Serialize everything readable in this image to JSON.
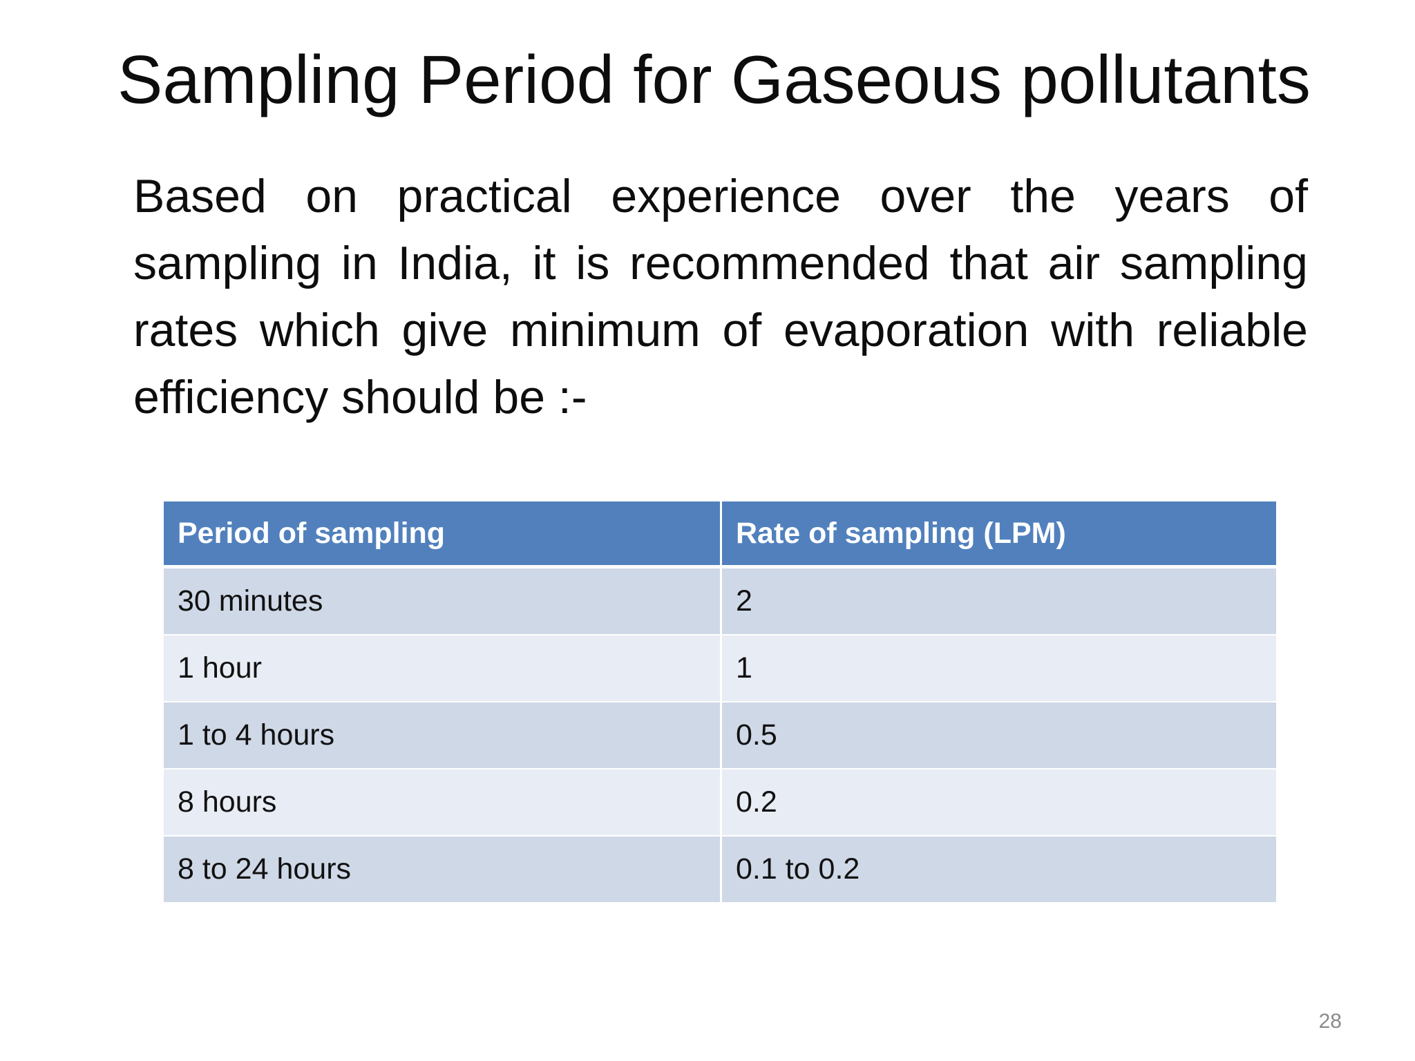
{
  "slide": {
    "title": "Sampling Period for Gaseous pollutants",
    "body": "Based on practical experience over the years of sampling in India, it is recommended that air sampling rates which give minimum of evaporation with reliable efficiency should be :-",
    "page_number": "28"
  },
  "table": {
    "headers": [
      "Period of sampling",
      "Rate of sampling (LPM)"
    ],
    "rows": [
      [
        "30 minutes",
        "2"
      ],
      [
        "1 hour",
        "1"
      ],
      [
        "1 to 4 hours",
        "0.5"
      ],
      [
        "8 hours",
        "0.2"
      ],
      [
        "8 to 24 hours",
        "0.1 to 0.2"
      ]
    ]
  },
  "colors": {
    "header_bg": "#5180bd",
    "row_odd_bg": "#cfd8e7",
    "row_even_bg": "#e8ecf4"
  }
}
